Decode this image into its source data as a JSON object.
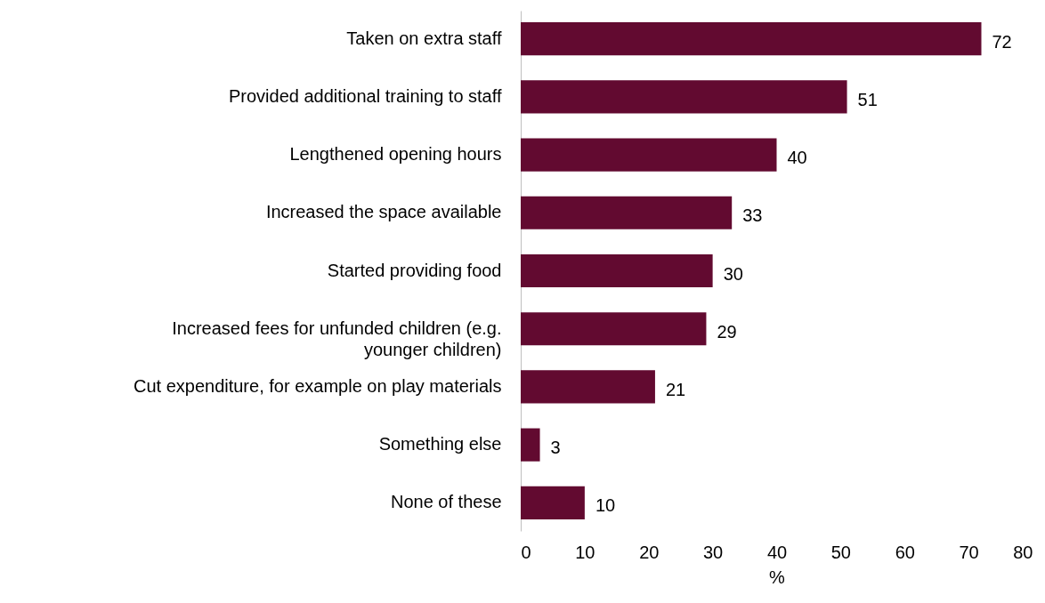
{
  "chart_data": {
    "type": "bar",
    "orientation": "horizontal",
    "xlabel": "%",
    "categories": [
      "Taken on extra staff",
      "Provided additional training to staff",
      "Lengthened opening hours",
      "Increased the space available",
      "Started providing food",
      "Increased fees for unfunded children (e.g. younger children)",
      "Cut expenditure, for example on play materials",
      "Something else",
      "None of these"
    ],
    "values": [
      72,
      51,
      40,
      33,
      30,
      29,
      21,
      3,
      10
    ],
    "color": "#620a30",
    "xlim": [
      0,
      80
    ],
    "xticks": [
      0,
      10,
      20,
      30,
      40,
      50,
      60,
      70,
      80
    ],
    "data_labels": true,
    "grid": false
  }
}
